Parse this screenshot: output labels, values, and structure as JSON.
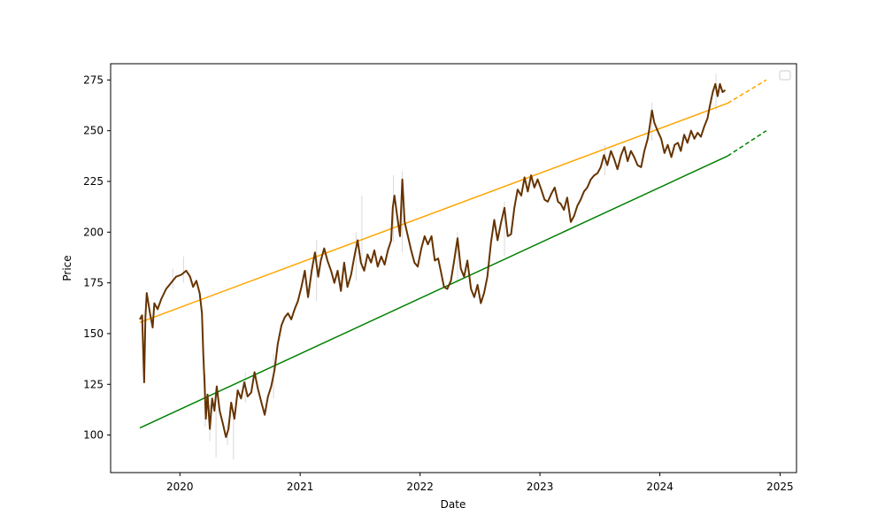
{
  "chart_data": {
    "type": "line",
    "xlabel": "Date",
    "ylabel": "Price",
    "xlim": [
      "2019-06-04",
      "2025-02-20"
    ],
    "ylim": [
      81.5,
      283
    ],
    "grid": false,
    "legend": "top-right",
    "x_ticks": [
      "2020",
      "2021",
      "2022",
      "2023",
      "2024",
      "2025"
    ],
    "y_ticks": [
      100,
      125,
      150,
      175,
      200,
      225,
      250,
      275
    ],
    "colors": {
      "price": "#663300",
      "wick": "#d9d9d9",
      "upper_band": "#ffa500",
      "lower_band": "#008000"
    },
    "series": [
      {
        "key": "price",
        "style": "solid",
        "points": [
          [
            "2019-09-01",
            157
          ],
          [
            "2019-09-08",
            159
          ],
          [
            "2019-09-14",
            126
          ],
          [
            "2019-09-18",
            158
          ],
          [
            "2019-09-22",
            170
          ],
          [
            "2019-10-02",
            160
          ],
          [
            "2019-10-10",
            153
          ],
          [
            "2019-10-15",
            165
          ],
          [
            "2019-10-25",
            162
          ],
          [
            "2019-11-05",
            167
          ],
          [
            "2019-11-20",
            172
          ],
          [
            "2019-12-05",
            175
          ],
          [
            "2019-12-20",
            178
          ],
          [
            "2020-01-05",
            179
          ],
          [
            "2020-01-20",
            181
          ],
          [
            "2020-02-01",
            178
          ],
          [
            "2020-02-10",
            173
          ],
          [
            "2020-02-20",
            176
          ],
          [
            "2020-03-01",
            170
          ],
          [
            "2020-03-08",
            160
          ],
          [
            "2020-03-12",
            140
          ],
          [
            "2020-03-16",
            125
          ],
          [
            "2020-03-20",
            108
          ],
          [
            "2020-03-25",
            120
          ],
          [
            "2020-04-01",
            103
          ],
          [
            "2020-04-08",
            118
          ],
          [
            "2020-04-15",
            112
          ],
          [
            "2020-04-22",
            124
          ],
          [
            "2020-05-01",
            112
          ],
          [
            "2020-05-10",
            106
          ],
          [
            "2020-05-20",
            99
          ],
          [
            "2020-05-28",
            103
          ],
          [
            "2020-06-05",
            116
          ],
          [
            "2020-06-15",
            108
          ],
          [
            "2020-06-25",
            122
          ],
          [
            "2020-07-05",
            118
          ],
          [
            "2020-07-15",
            126
          ],
          [
            "2020-07-25",
            119
          ],
          [
            "2020-08-05",
            121
          ],
          [
            "2020-08-15",
            131
          ],
          [
            "2020-08-25",
            123
          ],
          [
            "2020-09-05",
            116
          ],
          [
            "2020-09-15",
            110
          ],
          [
            "2020-09-25",
            119
          ],
          [
            "2020-10-05",
            124
          ],
          [
            "2020-10-15",
            132
          ],
          [
            "2020-10-25",
            145
          ],
          [
            "2020-11-05",
            154
          ],
          [
            "2020-11-15",
            158
          ],
          [
            "2020-11-25",
            160
          ],
          [
            "2020-12-05",
            157
          ],
          [
            "2020-12-15",
            162
          ],
          [
            "2020-12-25",
            166
          ],
          [
            "2021-01-05",
            173
          ],
          [
            "2021-01-15",
            181
          ],
          [
            "2021-01-25",
            168
          ],
          [
            "2021-02-05",
            181
          ],
          [
            "2021-02-15",
            190
          ],
          [
            "2021-02-25",
            178
          ],
          [
            "2021-03-05",
            186
          ],
          [
            "2021-03-15",
            192
          ],
          [
            "2021-03-25",
            186
          ],
          [
            "2021-04-05",
            181
          ],
          [
            "2021-04-15",
            175
          ],
          [
            "2021-04-25",
            181
          ],
          [
            "2021-05-05",
            171
          ],
          [
            "2021-05-15",
            185
          ],
          [
            "2021-05-25",
            173
          ],
          [
            "2021-06-05",
            179
          ],
          [
            "2021-06-15",
            188
          ],
          [
            "2021-06-25",
            196
          ],
          [
            "2021-07-05",
            185
          ],
          [
            "2021-07-15",
            181
          ],
          [
            "2021-07-25",
            189
          ],
          [
            "2021-08-05",
            185
          ],
          [
            "2021-08-15",
            191
          ],
          [
            "2021-08-25",
            183
          ],
          [
            "2021-09-05",
            188
          ],
          [
            "2021-09-15",
            184
          ],
          [
            "2021-09-25",
            191
          ],
          [
            "2021-10-05",
            196
          ],
          [
            "2021-10-10",
            212
          ],
          [
            "2021-10-15",
            218
          ],
          [
            "2021-10-25",
            206
          ],
          [
            "2021-11-01",
            198
          ],
          [
            "2021-11-08",
            226
          ],
          [
            "2021-11-15",
            205
          ],
          [
            "2021-11-25",
            198
          ],
          [
            "2021-12-05",
            191
          ],
          [
            "2021-12-15",
            185
          ],
          [
            "2021-12-25",
            183
          ],
          [
            "2022-01-05",
            192
          ],
          [
            "2022-01-15",
            198
          ],
          [
            "2022-01-25",
            194
          ],
          [
            "2022-02-05",
            198
          ],
          [
            "2022-02-15",
            186
          ],
          [
            "2022-02-25",
            187
          ],
          [
            "2022-03-05",
            181
          ],
          [
            "2022-03-15",
            173
          ],
          [
            "2022-03-25",
            172
          ],
          [
            "2022-04-05",
            176
          ],
          [
            "2022-04-15",
            186
          ],
          [
            "2022-04-25",
            197
          ],
          [
            "2022-05-05",
            182
          ],
          [
            "2022-05-15",
            178
          ],
          [
            "2022-05-25",
            186
          ],
          [
            "2022-06-05",
            172
          ],
          [
            "2022-06-15",
            168
          ],
          [
            "2022-06-25",
            174
          ],
          [
            "2022-07-05",
            165
          ],
          [
            "2022-07-15",
            170
          ],
          [
            "2022-07-25",
            178
          ],
          [
            "2022-08-05",
            195
          ],
          [
            "2022-08-15",
            206
          ],
          [
            "2022-08-25",
            196
          ],
          [
            "2022-09-05",
            205
          ],
          [
            "2022-09-15",
            212
          ],
          [
            "2022-09-25",
            198
          ],
          [
            "2022-10-05",
            199
          ],
          [
            "2022-10-15",
            212
          ],
          [
            "2022-10-25",
            221
          ],
          [
            "2022-11-05",
            218
          ],
          [
            "2022-11-15",
            227
          ],
          [
            "2022-11-25",
            220
          ],
          [
            "2022-12-05",
            228
          ],
          [
            "2022-12-15",
            222
          ],
          [
            "2022-12-25",
            226
          ],
          [
            "2023-01-05",
            221
          ],
          [
            "2023-01-15",
            216
          ],
          [
            "2023-01-25",
            215
          ],
          [
            "2023-02-05",
            219
          ],
          [
            "2023-02-15",
            222
          ],
          [
            "2023-02-25",
            215
          ],
          [
            "2023-03-05",
            214
          ],
          [
            "2023-03-15",
            211
          ],
          [
            "2023-03-25",
            217
          ],
          [
            "2023-04-05",
            205
          ],
          [
            "2023-04-15",
            208
          ],
          [
            "2023-04-25",
            213
          ],
          [
            "2023-05-05",
            216
          ],
          [
            "2023-05-15",
            220
          ],
          [
            "2023-05-25",
            222
          ],
          [
            "2023-06-05",
            226
          ],
          [
            "2023-06-15",
            228
          ],
          [
            "2023-06-25",
            229
          ],
          [
            "2023-07-05",
            232
          ],
          [
            "2023-07-15",
            238
          ],
          [
            "2023-07-25",
            233
          ],
          [
            "2023-08-05",
            240
          ],
          [
            "2023-08-15",
            236
          ],
          [
            "2023-08-25",
            231
          ],
          [
            "2023-09-05",
            238
          ],
          [
            "2023-09-15",
            242
          ],
          [
            "2023-09-25",
            235
          ],
          [
            "2023-10-05",
            240
          ],
          [
            "2023-10-15",
            237
          ],
          [
            "2023-10-25",
            233
          ],
          [
            "2023-11-05",
            232
          ],
          [
            "2023-11-15",
            240
          ],
          [
            "2023-11-25",
            246
          ],
          [
            "2023-12-01",
            252
          ],
          [
            "2023-12-08",
            260
          ],
          [
            "2023-12-15",
            254
          ],
          [
            "2023-12-25",
            250
          ],
          [
            "2024-01-05",
            246
          ],
          [
            "2024-01-15",
            239
          ],
          [
            "2024-01-25",
            243
          ],
          [
            "2024-02-05",
            237
          ],
          [
            "2024-02-15",
            243
          ],
          [
            "2024-02-25",
            244
          ],
          [
            "2024-03-05",
            240
          ],
          [
            "2024-03-15",
            248
          ],
          [
            "2024-03-25",
            244
          ],
          [
            "2024-04-05",
            250
          ],
          [
            "2024-04-15",
            246
          ],
          [
            "2024-04-25",
            249
          ],
          [
            "2024-05-05",
            247
          ],
          [
            "2024-05-15",
            252
          ],
          [
            "2024-05-25",
            256
          ],
          [
            "2024-06-01",
            262
          ],
          [
            "2024-06-10",
            269
          ],
          [
            "2024-06-18",
            273
          ],
          [
            "2024-06-25",
            267
          ],
          [
            "2024-07-02",
            273
          ],
          [
            "2024-07-10",
            269
          ],
          [
            "2024-07-18",
            270
          ]
        ]
      },
      {
        "key": "upper_band",
        "style": "solid",
        "points": [
          [
            "2019-09-01",
            155.5
          ],
          [
            "2024-07-25",
            263.5
          ]
        ]
      },
      {
        "key": "upper_band",
        "style": "dashed",
        "points": [
          [
            "2024-07-25",
            263.5
          ],
          [
            "2024-11-20",
            275
          ]
        ]
      },
      {
        "key": "lower_band",
        "style": "solid",
        "points": [
          [
            "2019-09-01",
            103.5
          ],
          [
            "2024-07-25",
            237.5
          ]
        ]
      },
      {
        "key": "lower_band",
        "style": "dashed",
        "points": [
          [
            "2024-07-25",
            237.5
          ],
          [
            "2024-11-20",
            250
          ]
        ]
      }
    ],
    "wicks": [
      [
        "2019-12-10",
        172,
        182
      ],
      [
        "2020-01-12",
        175,
        188
      ],
      [
        "2020-03-18",
        104,
        130
      ],
      [
        "2020-04-01",
        97,
        115
      ],
      [
        "2020-04-20",
        89,
        112
      ],
      [
        "2020-05-25",
        95,
        106
      ],
      [
        "2020-06-12",
        88,
        112
      ],
      [
        "2020-07-18",
        116,
        131
      ],
      [
        "2020-10-12",
        118,
        140
      ],
      [
        "2021-02-20",
        166,
        196
      ],
      [
        "2021-06-20",
        176,
        200
      ],
      [
        "2021-07-08",
        182,
        218
      ],
      [
        "2021-10-12",
        195,
        228
      ],
      [
        "2021-11-08",
        190,
        230
      ],
      [
        "2022-04-25",
        175,
        200
      ],
      [
        "2022-09-15",
        188,
        215
      ],
      [
        "2023-07-18",
        228,
        243
      ],
      [
        "2023-12-08",
        245,
        264
      ],
      [
        "2024-06-20",
        260,
        278
      ]
    ]
  }
}
